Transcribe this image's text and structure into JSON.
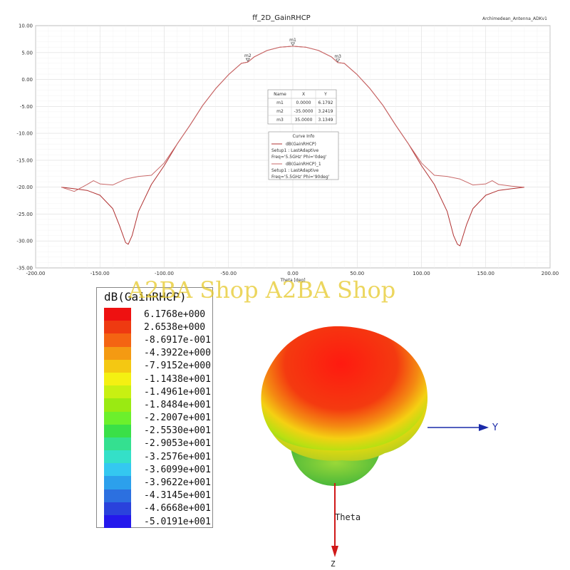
{
  "chart_data": [
    {
      "type": "line",
      "title": "ff_2D_GainRHCP",
      "project_label": "Archimedean_Antenna_ADKv1",
      "xlabel": "Theta [deg]",
      "ylabel": "",
      "xlim": [
        -200,
        200
      ],
      "ylim": [
        -35,
        10
      ],
      "xticks": [
        "-200.00",
        "-150.00",
        "-100.00",
        "-50.00",
        "0.00",
        "50.00",
        "100.00",
        "150.00",
        "200.00"
      ],
      "yticks": [
        "10.00",
        "5.00",
        "0.00",
        "-5.00",
        "-10.00",
        "-15.00",
        "-20.00",
        "-25.00",
        "-30.00",
        "-35.00"
      ],
      "grid": true,
      "series": [
        {
          "name": "dB(GainRHCP)",
          "setup": "Setup1 : LastAdaptive",
          "params": "Freq='5.5GHz' Phi='0deg'",
          "color": "#b03030",
          "x": [
            -180,
            -170,
            -160,
            -150,
            -140,
            -135,
            -130,
            -128,
            -125,
            -120,
            -110,
            -100,
            -90,
            -80,
            -70,
            -60,
            -50,
            -40,
            -35,
            -30,
            -20,
            -10,
            0,
            10,
            20,
            30,
            35,
            40,
            50,
            60,
            70,
            80,
            90,
            100,
            110,
            120,
            125,
            128,
            130,
            135,
            140,
            150,
            160,
            170,
            180
          ],
          "y": [
            -20,
            -20.3,
            -20.6,
            -21.5,
            -24,
            -27,
            -30.3,
            -30.6,
            -29,
            -24.5,
            -19.5,
            -16,
            -12,
            -8.5,
            -4.8,
            -1.7,
            0.9,
            3,
            3.24,
            4.2,
            5.4,
            6,
            6.18,
            6,
            5.4,
            4.2,
            3.13,
            3,
            0.9,
            -1.7,
            -4.8,
            -8.5,
            -12,
            -16,
            -19.5,
            -24.5,
            -29,
            -30.6,
            -30.9,
            -27,
            -24,
            -21.5,
            -20.6,
            -20.3,
            -20
          ]
        },
        {
          "name": "dB(GainRHCP)_1",
          "setup": "Setup1 : LastAdaptive",
          "params": "Freq='5.5GHz' Phi='90deg'",
          "color": "#c86868",
          "x": [
            -180,
            -170,
            -160,
            -155,
            -150,
            -140,
            -130,
            -120,
            -110,
            -100,
            -90,
            -80,
            -70,
            -60,
            -50,
            -40,
            -35,
            -30,
            -20,
            -10,
            0,
            10,
            20,
            30,
            35,
            40,
            50,
            60,
            70,
            80,
            90,
            100,
            110,
            120,
            130,
            140,
            150,
            155,
            160,
            170,
            180
          ],
          "y": [
            -20,
            -20.8,
            -19.5,
            -18.8,
            -19.4,
            -19.6,
            -18.5,
            -18,
            -17.8,
            -15.5,
            -12,
            -8.5,
            -4.8,
            -1.7,
            0.9,
            3,
            3.24,
            4.2,
            5.4,
            6,
            6.18,
            6,
            5.4,
            4.2,
            3.13,
            3,
            0.9,
            -1.7,
            -4.8,
            -8.5,
            -12,
            -15.5,
            -17.8,
            -18,
            -18.5,
            -19.6,
            -19.4,
            -18.8,
            -19.5,
            -19.8,
            -20
          ]
        }
      ],
      "markers": [
        {
          "name": "m1",
          "x": 0.0,
          "y": 6.1792,
          "x_text": "0.0000",
          "y_text": "6.1792"
        },
        {
          "name": "m2",
          "x": -35.0,
          "y": 3.2419,
          "x_text": "-35.0000",
          "y_text": "3.2419"
        },
        {
          "name": "m3",
          "x": 35.0,
          "y": 3.1349,
          "x_text": "35.0000",
          "y_text": "3.1349"
        }
      ],
      "marker_table": {
        "headers": [
          "Name",
          "X",
          "Y"
        ]
      },
      "curve_info_title": "Curve Info"
    },
    {
      "type": "heatmap",
      "title": "dB(GainRHCP)",
      "legend_values": [
        "6.1768e+000",
        "2.6538e+000",
        "-8.6917e-001",
        "-4.3922e+000",
        "-7.9152e+000",
        "-1.1438e+001",
        "-1.4961e+001",
        "-1.8484e+001",
        "-2.2007e+001",
        "-2.5530e+001",
        "-2.9053e+001",
        "-3.2576e+001",
        "-3.6099e+001",
        "-3.9622e+001",
        "-4.3145e+001",
        "-4.6668e+001",
        "-5.0191e+001"
      ],
      "legend_colors": [
        "#ee1111",
        "#ee3a11",
        "#f46412",
        "#f49a12",
        "#f4c812",
        "#f4f012",
        "#c8f012",
        "#9aea12",
        "#6cf02c",
        "#3ae048",
        "#34e090",
        "#34e0c8",
        "#34c8f0",
        "#2ca0ec",
        "#2c70e0",
        "#2a42dc",
        "#2418ec"
      ],
      "axes": {
        "y_label": "Y",
        "theta_label": "Theta",
        "z_label": "Z"
      }
    }
  ],
  "watermark": "A2BA Shop A2BA Shop"
}
